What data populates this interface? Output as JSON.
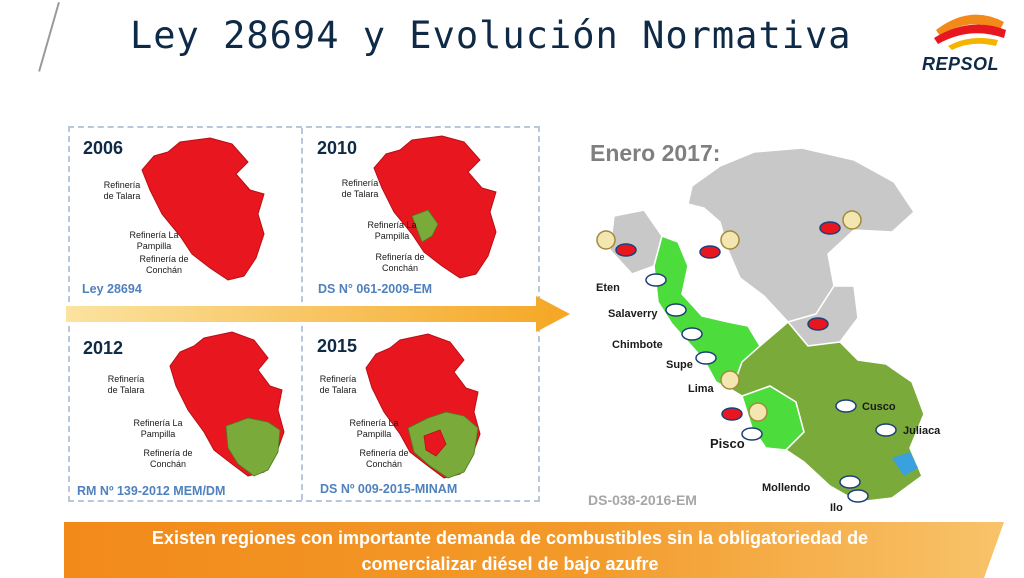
{
  "slide": {
    "title": "Ley 28694 y Evolución Normativa",
    "brand": "REPSOL"
  },
  "panels": [
    {
      "year": "2006",
      "source": "Ley 28694",
      "refineries": [
        "Refinería de Talara",
        "Refinería La Pampilla",
        "Refinería de Conchán"
      ]
    },
    {
      "year": "2010",
      "source": "DS N° 061-2009-EM",
      "refineries": [
        "Refinería de Talara",
        "Refinería La Pampilla",
        "Refinería de Conchán"
      ]
    },
    {
      "year": "2012",
      "source": "RM Nº 139-2012 MEM/DM",
      "refineries": [
        "Refinería de Talara",
        "Refinería La Pampilla",
        "Refinería de Conchán"
      ]
    },
    {
      "year": "2015",
      "source": "DS Nº 009-2015-MINAM",
      "refineries": [
        "Refinería de Talara",
        "Refinería La Pampilla",
        "Refinería de Conchán"
      ]
    }
  ],
  "map_2017": {
    "heading": "Enero 2017:",
    "source": "DS-038-2016-EM",
    "places": [
      "Eten",
      "Salaverry",
      "Chimbote",
      "Supe",
      "Lima",
      "Pisco",
      "Cusco",
      "Juliaca",
      "Mollendo",
      "Ilo"
    ]
  },
  "banner": {
    "line1": "Existen regiones con importante demanda de combustibles sin la obligatoriedad de",
    "line2": "comercializar diésel de bajo azufre"
  },
  "colors": {
    "restricted": "#e8161f",
    "light_green": "#4cdc3c",
    "dark_green": "#7aaa3a",
    "gray": "#c8c8c8",
    "title": "#0e2a47",
    "arrow": "#f5a623",
    "banner": "#f28a1a"
  }
}
